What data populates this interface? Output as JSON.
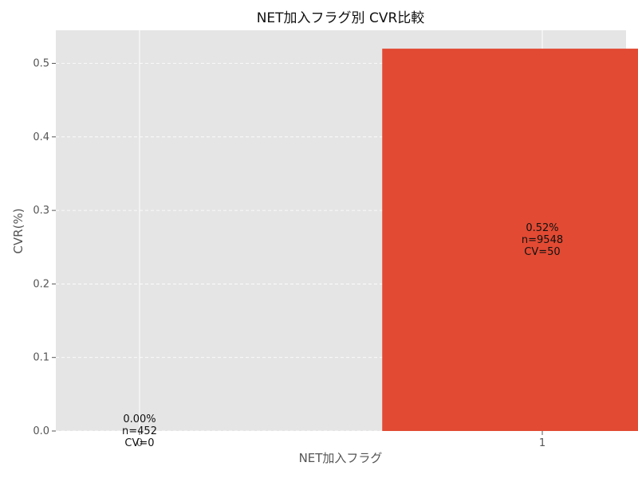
{
  "chart_data": {
    "type": "bar",
    "title": "NET加入フラグ別 CVR比較",
    "xlabel": "NET加入フラグ",
    "ylabel": "CVR(%)",
    "categories": [
      "0",
      "1"
    ],
    "values": [
      0.0,
      0.52
    ],
    "data_labels": [
      [
        "0.00%",
        "n=452",
        "CV=0"
      ],
      [
        "0.52%",
        "n=9548",
        "CV=50"
      ]
    ],
    "ylim": [
      0,
      0.545
    ],
    "yticks": [
      0.0,
      0.1,
      0.2,
      0.3,
      0.4,
      0.5
    ],
    "ytick_labels": [
      "0.0",
      "0.1",
      "0.2",
      "0.3",
      "0.4",
      "0.5"
    ],
    "grid": true,
    "grid_style": "dashed horizontal, solid vertical",
    "colors": {
      "bar": "#E24A33",
      "plot_background": "#E5E5E5",
      "grid": "#FFFFFF"
    }
  }
}
